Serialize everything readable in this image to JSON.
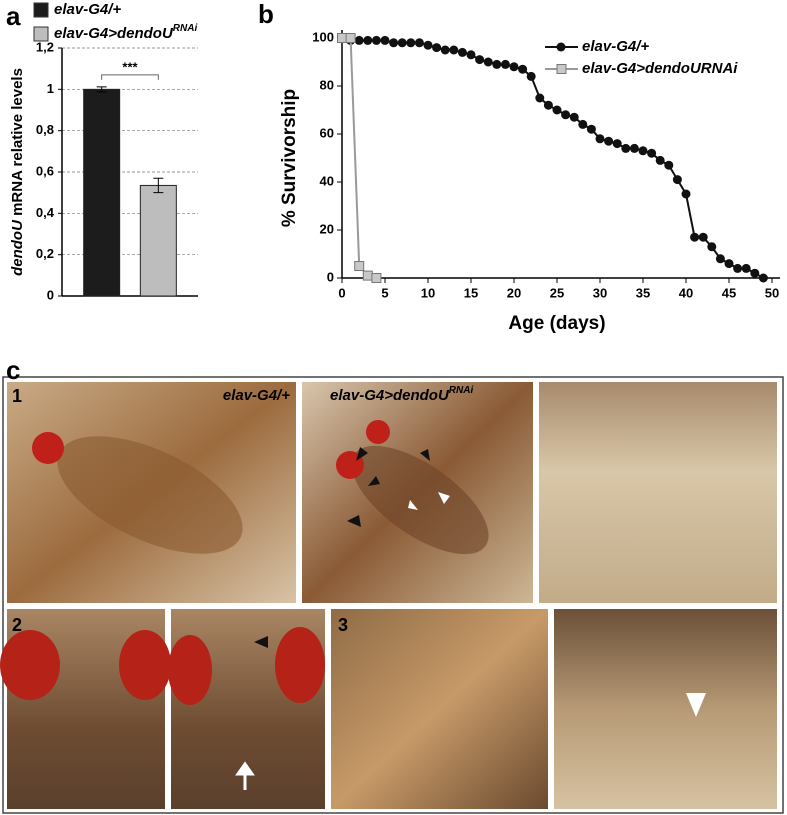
{
  "chart_data": [
    {
      "type": "bar",
      "panel_label": "a",
      "ylabel": [
        "dendoU",
        " mRNA relative levels"
      ],
      "categories": [
        null
      ],
      "series": [
        {
          "name": "elav-G4/+",
          "color": "#1c1c1c",
          "values": [
            1.0
          ],
          "errors": [
            0.012
          ]
        },
        {
          "name": "elav-G4>dendoU",
          "name_superscript": "RNAi",
          "color": "#bdbdbd",
          "values": [
            0.535
          ],
          "errors": [
            0.035
          ]
        }
      ],
      "annotation": "***",
      "ylim": [
        0,
        1.2
      ],
      "yticks": [
        0,
        {
          "value": 0.2,
          "label": "0,2"
        },
        {
          "value": 0.4,
          "label": "0,4"
        },
        {
          "value": 0.6,
          "label": "0,6"
        },
        {
          "value": 0.8,
          "label": "0,8"
        },
        1,
        {
          "value": 1.2,
          "label": "1,2"
        }
      ],
      "grid": true
    },
    {
      "type": "line",
      "panel_label": "b",
      "xlabel": "Age (days)",
      "ylabel": "% Survivorship",
      "series": [
        {
          "name": "elav-G4/+",
          "color": "#111111",
          "marker": "circle",
          "x": [
            0,
            1,
            2,
            3,
            4,
            5,
            6,
            7,
            8,
            9,
            10,
            11,
            12,
            13,
            14,
            15,
            16,
            17,
            18,
            19,
            20,
            21,
            22,
            23,
            24,
            25,
            26,
            27,
            28,
            29,
            30,
            31,
            32,
            33,
            34,
            35,
            36,
            37,
            38,
            39,
            40,
            41,
            42,
            43,
            44,
            45,
            46,
            47,
            48,
            49
          ],
          "values": [
            100,
            99,
            99,
            99,
            99,
            99,
            98,
            98,
            98,
            98,
            97,
            96,
            95,
            95,
            94,
            93,
            91,
            90,
            89,
            89,
            88,
            87,
            84,
            75,
            72,
            70,
            68,
            67,
            64,
            62,
            58,
            57,
            56,
            54,
            54,
            53,
            52,
            49,
            47,
            41,
            35,
            17,
            17,
            13,
            8,
            6,
            4,
            4,
            2,
            0
          ]
        },
        {
          "name": "elav-G4>dendoURNAi",
          "color": "#9a9a9a",
          "marker": "square",
          "x": [
            0,
            1,
            2,
            3,
            4
          ],
          "values": [
            100,
            100,
            5,
            1,
            0
          ]
        }
      ],
      "xlim": [
        0,
        50
      ],
      "xticks": [
        0,
        5,
        10,
        15,
        20,
        25,
        30,
        35,
        40,
        45,
        50
      ],
      "ylim": [
        0,
        100
      ],
      "yticks": [
        0,
        20,
        40,
        60,
        80,
        100
      ],
      "legend": "upper right"
    }
  ],
  "panel_c": {
    "label": "c",
    "row_labels": [
      "1",
      "2",
      "3"
    ],
    "caption_control": "elav-G4/+",
    "caption_rnai": {
      "text": "elav-G4>dendoU",
      "superscript": "RNAi"
    }
  }
}
